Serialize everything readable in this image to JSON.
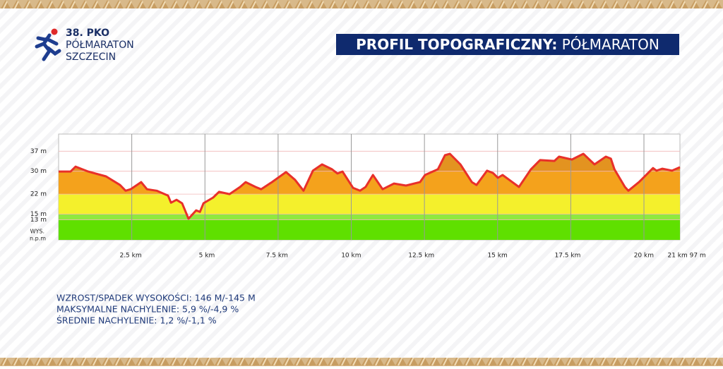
{
  "header": {
    "logo_lines": [
      "38. PKO",
      "PÓŁMARATON",
      "SZCZECIN"
    ],
    "title_bold": "PROFIL TOPOGRAFICZNY:",
    "title_light": "PÓŁMARATON"
  },
  "chart_data": {
    "type": "area",
    "x": [
      0,
      0.41,
      0.58,
      1.01,
      1.62,
      2.1,
      2.29,
      2.46,
      2.82,
      3.02,
      3.35,
      3.74,
      3.84,
      4.03,
      4.22,
      4.44,
      4.7,
      4.83,
      4.95,
      5.28,
      5.48,
      5.84,
      6.2,
      6.39,
      6.73,
      6.92,
      7.29,
      7.77,
      8.08,
      8.37,
      8.69,
      9.0,
      9.34,
      9.53,
      9.7,
      10.06,
      10.3,
      10.49,
      10.74,
      11.07,
      11.46,
      11.87,
      12.35,
      12.52,
      12.96,
      13.2,
      13.37,
      13.73,
      14.12,
      14.28,
      14.64,
      14.84,
      15.01,
      15.17,
      15.73,
      16.14,
      16.45,
      16.94,
      17.1,
      17.54,
      17.93,
      18.31,
      18.7,
      18.87,
      18.99,
      19.35,
      19.47,
      19.83,
      20.31,
      20.43,
      20.63,
      20.96,
      21.23
    ],
    "values": [
      29.9,
      29.9,
      31.6,
      29.9,
      28.2,
      25.2,
      23.2,
      23.7,
      26.2,
      23.7,
      23.2,
      21.5,
      19.0,
      20.0,
      18.8,
      13.4,
      16.3,
      15.8,
      18.8,
      20.8,
      22.8,
      22.0,
      24.5,
      26.2,
      24.5,
      23.7,
      26.2,
      29.7,
      27.0,
      23.2,
      30.2,
      32.4,
      30.7,
      29.2,
      29.9,
      24.2,
      23.2,
      24.5,
      28.7,
      23.7,
      25.7,
      25.0,
      26.2,
      28.7,
      30.7,
      35.6,
      36.1,
      32.4,
      26.2,
      25.2,
      30.2,
      29.4,
      27.7,
      28.7,
      24.5,
      30.7,
      33.9,
      33.6,
      35.1,
      34.1,
      36.1,
      32.4,
      35.1,
      34.4,
      30.7,
      24.5,
      23.2,
      26.2,
      31.1,
      30.2,
      30.9,
      30.2,
      31.4
    ],
    "line_color": "#e8302a",
    "bands": {
      "from": [
        6,
        13,
        15,
        22,
        30
      ],
      "colors": [
        "#5fe000",
        "#8fe840",
        "#f4f02c",
        "#f4a21c",
        "#e39320"
      ]
    },
    "xlim": [
      0,
      21.23
    ],
    "ylim": [
      6,
      43
    ],
    "xticks": [
      {
        "value": 2.5,
        "label": "2.5 km"
      },
      {
        "value": 5,
        "label": "5 km"
      },
      {
        "value": 7.5,
        "label": "7.5 km"
      },
      {
        "value": 10,
        "label": "10 km"
      },
      {
        "value": 12.5,
        "label": "12.5 km"
      },
      {
        "value": 15,
        "label": "15 km"
      },
      {
        "value": 17.5,
        "label": "17.5 km"
      },
      {
        "value": 20,
        "label": "20 km"
      },
      {
        "value": 21.097,
        "label": "21 km 97 m"
      }
    ],
    "yticks": [
      {
        "value": 37,
        "label": "37 m"
      },
      {
        "value": 30,
        "label": "30 m"
      },
      {
        "value": 22,
        "label": "22 m"
      },
      {
        "value": 15,
        "label": "15 m"
      },
      {
        "value": 13,
        "label": "13 m"
      }
    ],
    "y_label": [
      "WYS.",
      "n.p.m"
    ]
  },
  "stats": [
    "WZROST/SPADEK WYSOKOŚCI:  146 M/-145 M",
    "MAKSYMALNE NACHYLENIE: 5,9 %/-4,9 %",
    "ŚREDNIE NACHYLENIE:  1,2 %/-1,1 %"
  ]
}
